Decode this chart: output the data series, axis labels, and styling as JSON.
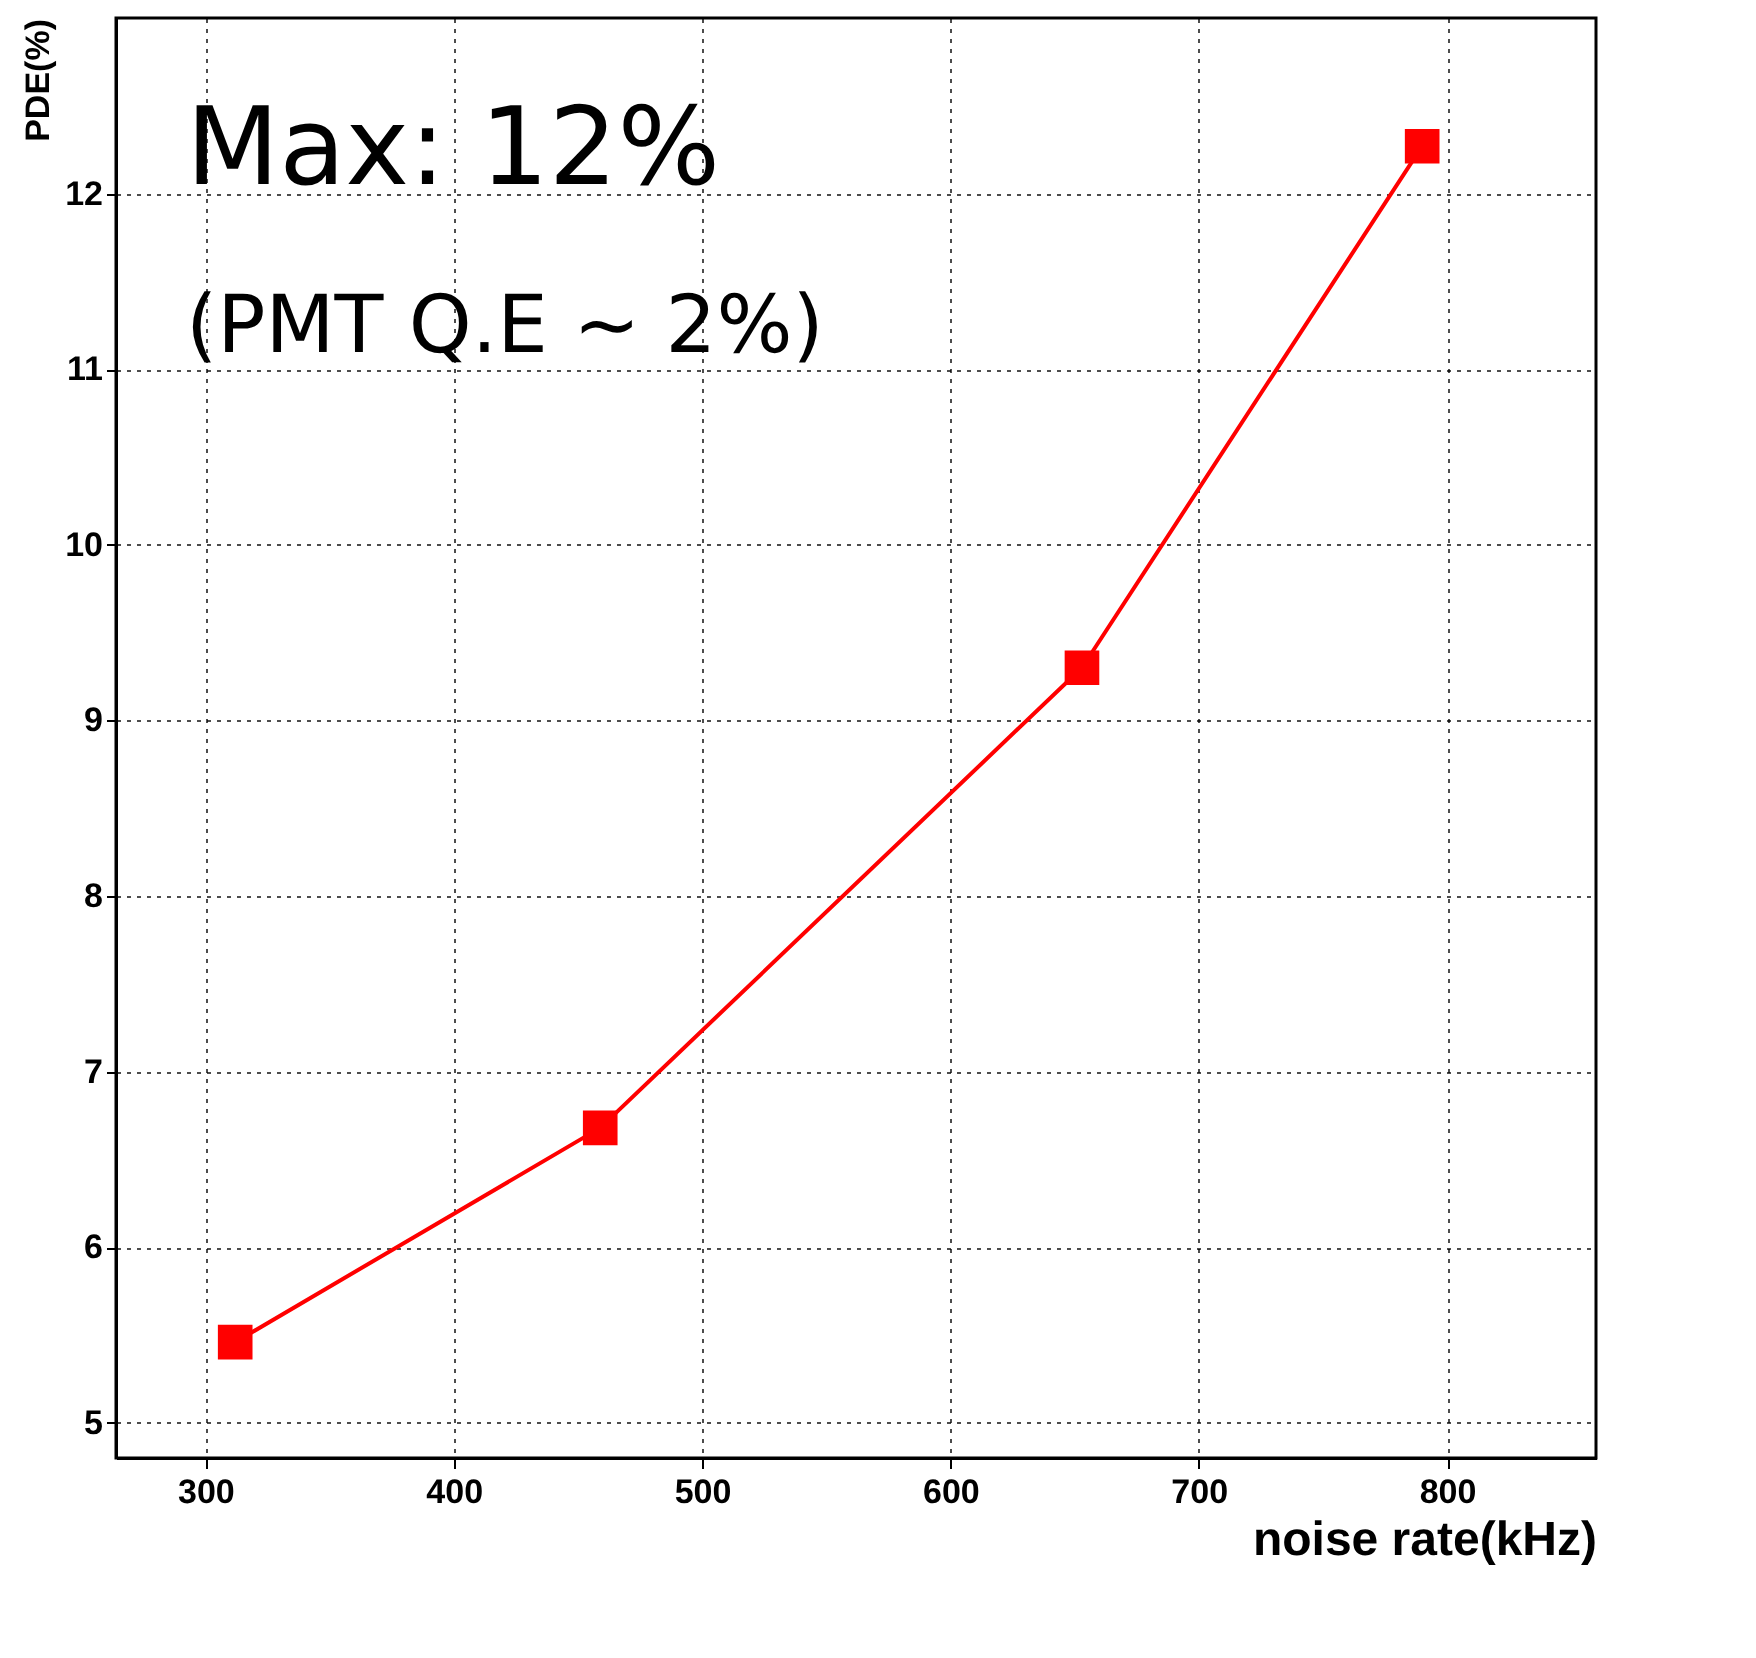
{
  "chart_data": {
    "type": "line",
    "xlabel": "noise rate(kHz)",
    "ylabel": "PDE(%)",
    "annotations": [
      "Max:  12%",
      "(PMT Q.E ~ 2%)"
    ],
    "x": [
      312,
      459,
      653,
      790
    ],
    "series": [
      {
        "color": "#ff0000",
        "values": [
          5.46,
          6.68,
          9.3,
          12.27
        ]
      }
    ],
    "xlim": [
      264,
      860
    ],
    "ylim": [
      4.8,
      13
    ],
    "xticks": [
      300,
      400,
      500,
      600,
      700,
      800
    ],
    "yticks": [
      5,
      6,
      7,
      8,
      9,
      10,
      11,
      12
    ],
    "grid": true,
    "marker": "square",
    "line_style": "solid"
  }
}
